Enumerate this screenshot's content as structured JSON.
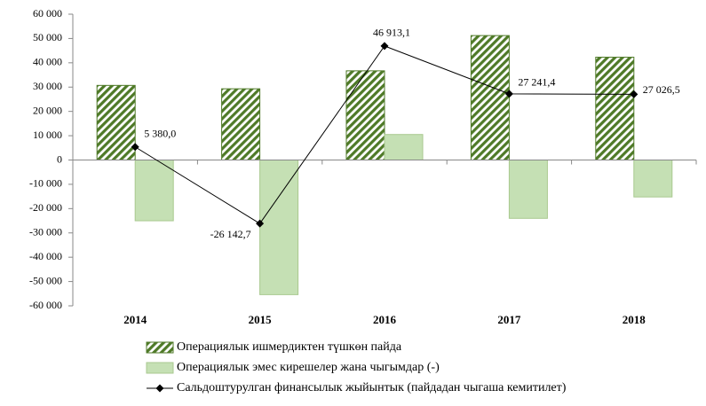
{
  "chart_data": {
    "type": "bar",
    "categories": [
      "2014",
      "2015",
      "2016",
      "2017",
      "2018"
    ],
    "series": [
      {
        "name": "Операциялык ишмердиктен түшкөн пайда",
        "color": "#4f7a28",
        "type": "bar",
        "hatch": true,
        "values": [
          30700,
          29300,
          36700,
          51200,
          42300
        ]
      },
      {
        "name": "Операциялык эмес кирешелер жана чыгымдар (-)",
        "color": "#c5e0b4",
        "type": "bar",
        "values": [
          -25000,
          -55400,
          10500,
          -24000,
          -15200
        ]
      },
      {
        "name": "Сальдоштурулган финансылык жыйынтык (пайдадан чыгаша кемитилет)",
        "color": "#000000",
        "type": "line",
        "values": [
          5380.0,
          -26142.7,
          46913.1,
          27241.4,
          27026.5
        ],
        "value_labels": [
          "5 380,0",
          "-26 142,7",
          "46 913,1",
          "27 241,4",
          "27 026,5"
        ]
      }
    ],
    "ylim": [
      -60000,
      60000
    ],
    "yticks": [
      {
        "value": -60000,
        "label": "-60 000"
      },
      {
        "value": -50000,
        "label": "-50 000"
      },
      {
        "value": -40000,
        "label": "-40 000"
      },
      {
        "value": -30000,
        "label": "-30 000"
      },
      {
        "value": -20000,
        "label": "-20 000"
      },
      {
        "value": -10000,
        "label": "-10 000"
      },
      0,
      {
        "value": 10000,
        "label": "10 000"
      },
      {
        "value": 20000,
        "label": "20 000"
      },
      {
        "value": 30000,
        "label": "30 000"
      },
      {
        "value": 40000,
        "label": "40 000"
      },
      {
        "value": 50000,
        "label": "50 000"
      },
      {
        "value": 60000,
        "label": "60 000"
      }
    ],
    "legend": "bottom"
  }
}
